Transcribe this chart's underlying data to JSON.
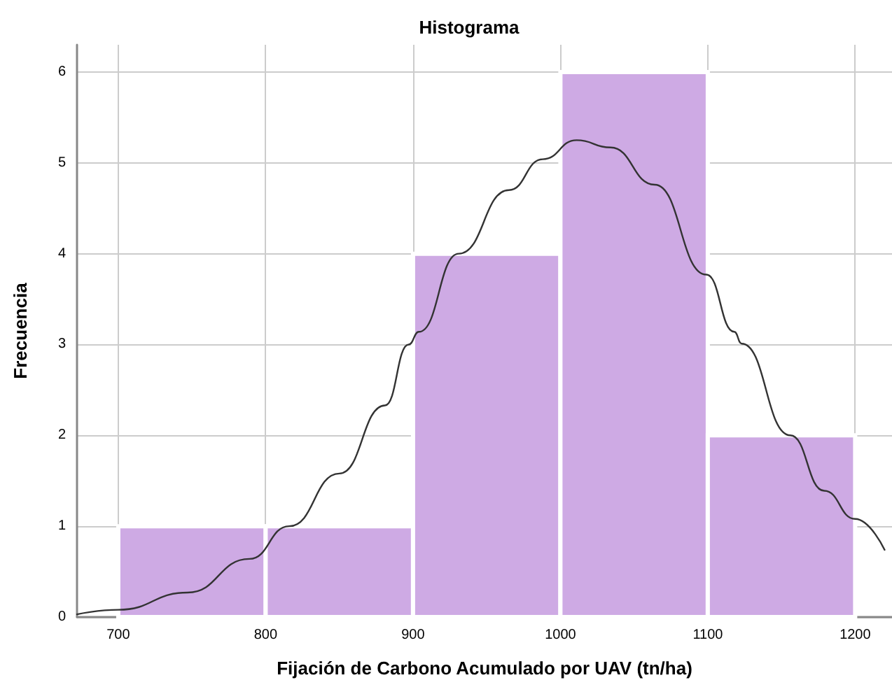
{
  "chart_data": {
    "type": "histogram",
    "title": "Histograma",
    "xlabel": "Fijación de Carbono Acumulado por UAV (tn/ha)",
    "ylabel": "Frecuencia",
    "bins": [
      700,
      800,
      900,
      1000,
      1100,
      1200
    ],
    "values": [
      1,
      1,
      4,
      6,
      2
    ],
    "color": "#ceaae4",
    "series": [
      {
        "type": "line",
        "color": "#333333",
        "x": [
          672,
          700,
          747,
          789,
          816,
          850,
          881,
          897,
          904,
          931,
          965,
          988,
          1011,
          1034,
          1064,
          1099,
          1118,
          1123,
          1156,
          1179,
          1200,
          1220
        ],
        "values": [
          0.03,
          0.08,
          0.27,
          0.64,
          1.0,
          1.58,
          2.33,
          3.0,
          3.14,
          4.0,
          4.7,
          5.04,
          5.25,
          5.17,
          4.76,
          3.77,
          3.14,
          3.01,
          2.0,
          1.39,
          1.08,
          0.74
        ]
      }
    ],
    "xlim": [
      672,
      1225
    ],
    "xticks": [
      700,
      800,
      900,
      1000,
      1100,
      1200
    ],
    "ylim": [
      0,
      6.3
    ],
    "yticks": [
      0,
      1,
      2,
      3,
      4,
      5,
      6
    ],
    "grid": true,
    "marker": "none",
    "line_style": "solid"
  }
}
